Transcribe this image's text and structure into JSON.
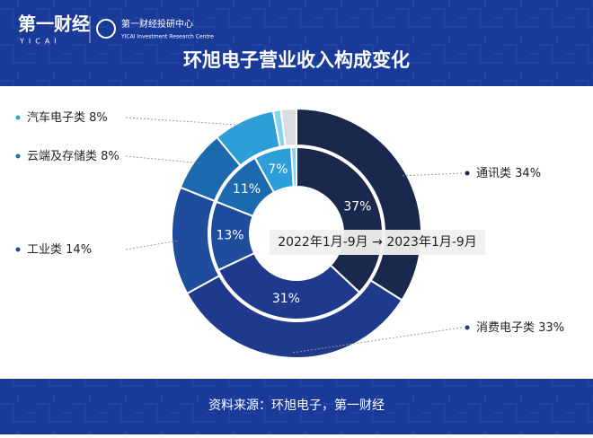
{
  "header": {
    "logo": "第一财经",
    "logo_en": "YICAI",
    "org": "第一财经投研中心",
    "org_en": "YICAI Investment Research Centre"
  },
  "chart_data": {
    "type": "nested-donut",
    "title": "环旭电子营业收入构成变化",
    "subtitle": "2022年1月-9月 → 2023年1月-9月",
    "source": "资料来源：环旭电子，第一财经",
    "categories": [
      "通讯类",
      "消费电子类",
      "工业类",
      "云端及存储类",
      "汽车电子类",
      null,
      null
    ],
    "colors": [
      "#1b284d",
      "#1f3a8c",
      "#1f4c9c",
      "#1c6aad",
      "#2d9fd8",
      "#86d3ef",
      "#d9dde2"
    ],
    "series": [
      {
        "values": [
          37,
          31,
          13,
          11,
          7,
          1,
          0
        ],
        "value_labels": [
          "37%",
          "31%",
          "13%",
          "11%",
          "7%",
          null,
          null
        ]
      },
      {
        "values": [
          34,
          33,
          14,
          8,
          8,
          1,
          2
        ],
        "value_labels": [
          "34%",
          "33%",
          "14%",
          "8%",
          "8%",
          null,
          null
        ]
      }
    ]
  }
}
